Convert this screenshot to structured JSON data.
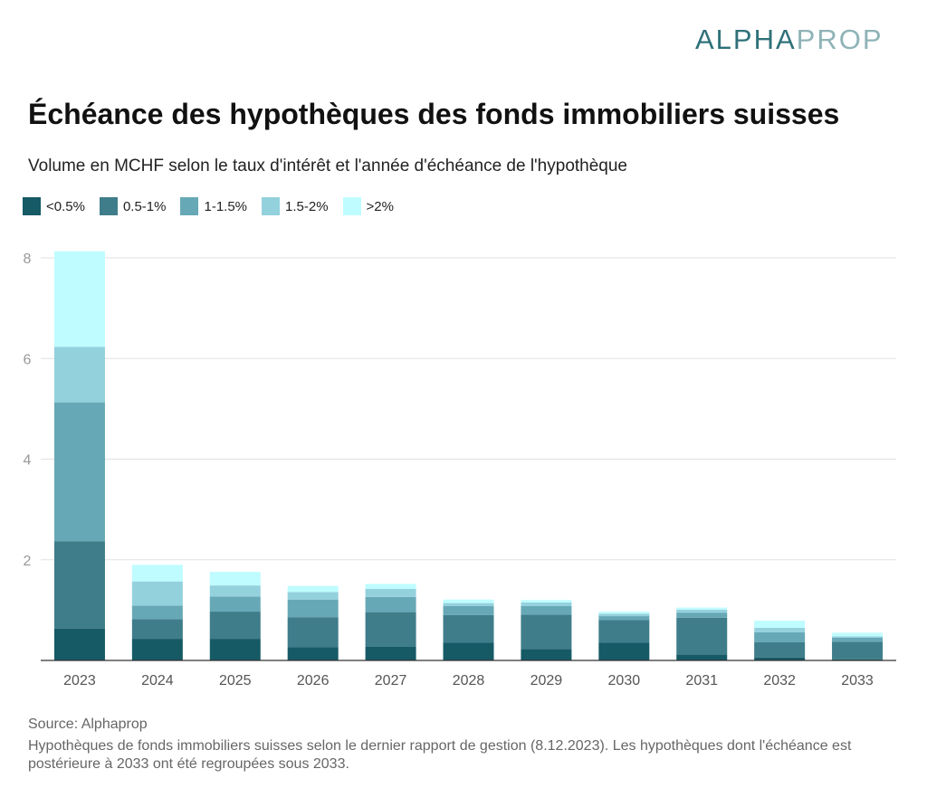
{
  "brand": {
    "part1": "ALPHA",
    "part2": "PROP"
  },
  "chart_data": {
    "type": "bar",
    "stacked": true,
    "title": "Échéance des hypothèques des fonds immobiliers suisses",
    "subtitle": "Volume en MCHF selon le taux d'intérêt et l'année d'échéance de l'hypothèque",
    "categories": [
      "2023",
      "2024",
      "2025",
      "2026",
      "2027",
      "2028",
      "2029",
      "2030",
      "2031",
      "2032",
      "2033"
    ],
    "ylim": [
      0,
      8
    ],
    "yticks": [
      "2",
      "4",
      "6",
      "8"
    ],
    "grid": true,
    "legend_position": "top-left",
    "series": [
      {
        "name": "<0.5%",
        "color": "#165a66",
        "values": [
          0.63,
          0.43,
          0.43,
          0.26,
          0.27,
          0.35,
          0.23,
          0.35,
          0.12,
          0.06,
          0.02
        ]
      },
      {
        "name": "0.5-1%",
        "color": "#3f7d8a",
        "values": [
          1.74,
          0.39,
          0.54,
          0.6,
          0.69,
          0.55,
          0.68,
          0.45,
          0.73,
          0.3,
          0.35
        ]
      },
      {
        "name": "1-1.5%",
        "color": "#67a8b6",
        "values": [
          2.76,
          0.27,
          0.3,
          0.35,
          0.3,
          0.18,
          0.17,
          0.08,
          0.1,
          0.2,
          0.08
        ]
      },
      {
        "name": "1.5-2%",
        "color": "#93d1dd",
        "values": [
          1.1,
          0.48,
          0.22,
          0.15,
          0.16,
          0.06,
          0.07,
          0.05,
          0.06,
          0.09,
          0.03
        ]
      },
      {
        "name": ">2%",
        "color": "#bffcff",
        "values": [
          1.9,
          0.33,
          0.27,
          0.12,
          0.1,
          0.07,
          0.05,
          0.04,
          0.04,
          0.14,
          0.07
        ]
      }
    ]
  },
  "footer": {
    "source": "Source: Alphaprop",
    "note": "Hypothèques de fonds immobiliers suisses selon le dernier rapport de gestion (8.12.2023). Les hypothèques dont l'échéance est postérieure à 2033 ont été regroupées sous 2033."
  }
}
